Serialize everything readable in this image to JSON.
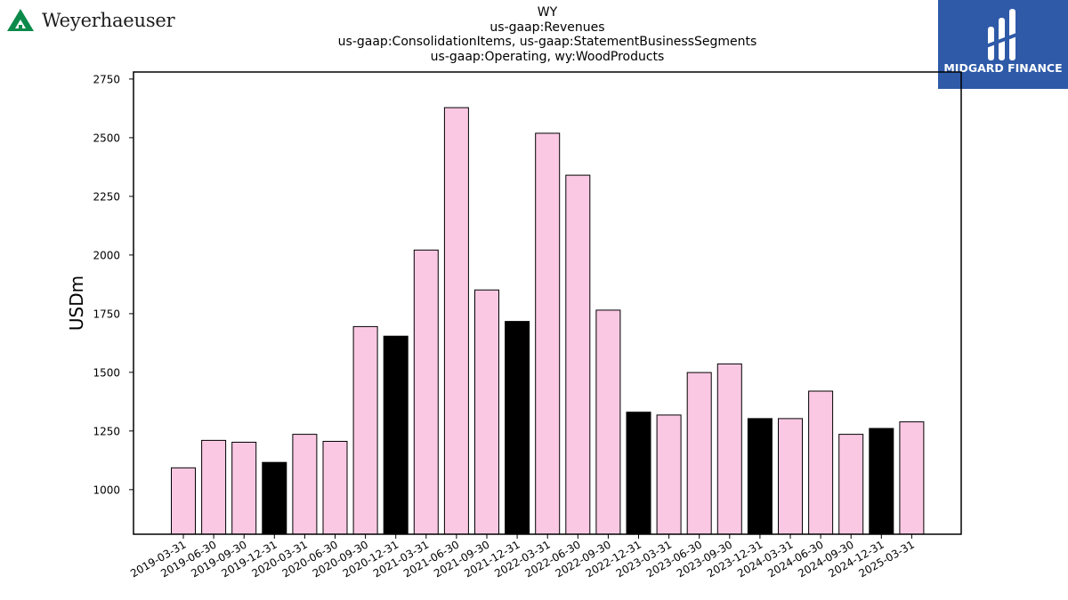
{
  "branding": {
    "left_logo_text": "Weyerhaeuser",
    "right_logo_text": "MIDGARD FINANCE",
    "left_logo_color": "#0b8a4a",
    "right_logo_bg": "#2e5aa8"
  },
  "chart_data": {
    "type": "bar",
    "title_lines": [
      "WY",
      "us-gaap:Revenues",
      "us-gaap:ConsolidationItems, us-gaap:StatementBusinessSegments",
      "us-gaap:Operating, wy:WoodProducts"
    ],
    "xlabel": "",
    "ylabel": "USDm",
    "ylim": [
      810,
      2780
    ],
    "yticks": [
      1000,
      1250,
      1500,
      1750,
      2000,
      2250,
      2500,
      2750
    ],
    "grid": false,
    "categories": [
      "2019-03-31",
      "2019-06-30",
      "2019-09-30",
      "2019-12-31",
      "2020-03-31",
      "2020-06-30",
      "2020-09-30",
      "2020-12-31",
      "2021-03-31",
      "2021-06-30",
      "2021-09-30",
      "2021-12-31",
      "2022-03-31",
      "2022-06-30",
      "2022-09-30",
      "2022-12-31",
      "2023-03-31",
      "2023-06-30",
      "2023-09-30",
      "2023-12-31",
      "2024-03-31",
      "2024-06-30",
      "2024-09-30",
      "2024-12-31",
      "2025-03-31"
    ],
    "values": [
      1093,
      1210,
      1202,
      1116,
      1236,
      1206,
      1695,
      1654,
      2021,
      2628,
      1851,
      1717,
      2519,
      2340,
      1765,
      1330,
      1318,
      1499,
      1536,
      1303,
      1303,
      1420,
      1236,
      1261,
      1289
    ],
    "bar_colors": {
      "quarter": "#fbc8e3",
      "year_end": "#000000"
    },
    "highlight_rule": "December quarters (year-end) drawn black"
  }
}
